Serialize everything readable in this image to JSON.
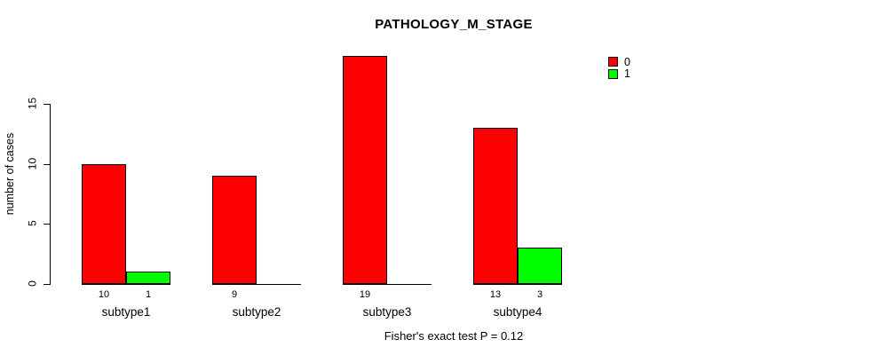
{
  "chart_data": {
    "type": "bar",
    "title": "PATHOLOGY_M_STAGE",
    "ylabel": "number of cases",
    "xlabel": "",
    "categories": [
      "subtype1",
      "subtype2",
      "subtype3",
      "subtype4"
    ],
    "series": [
      {
        "name": "0",
        "color": "#FF0000",
        "values": [
          10,
          9,
          19,
          13
        ]
      },
      {
        "name": "1",
        "color": "#00FF00",
        "values": [
          1,
          0,
          0,
          3
        ]
      }
    ],
    "yticks": [
      0,
      5,
      10,
      15
    ],
    "ylim": [
      0,
      19
    ],
    "grid": false,
    "legend_position": "top-right",
    "bar_value_labels_shown": [
      [
        "10",
        "1"
      ],
      [
        "9"
      ],
      [
        "19"
      ],
      [
        "13",
        "3"
      ]
    ],
    "annotation": "Fisher's exact test P = 0.12"
  }
}
